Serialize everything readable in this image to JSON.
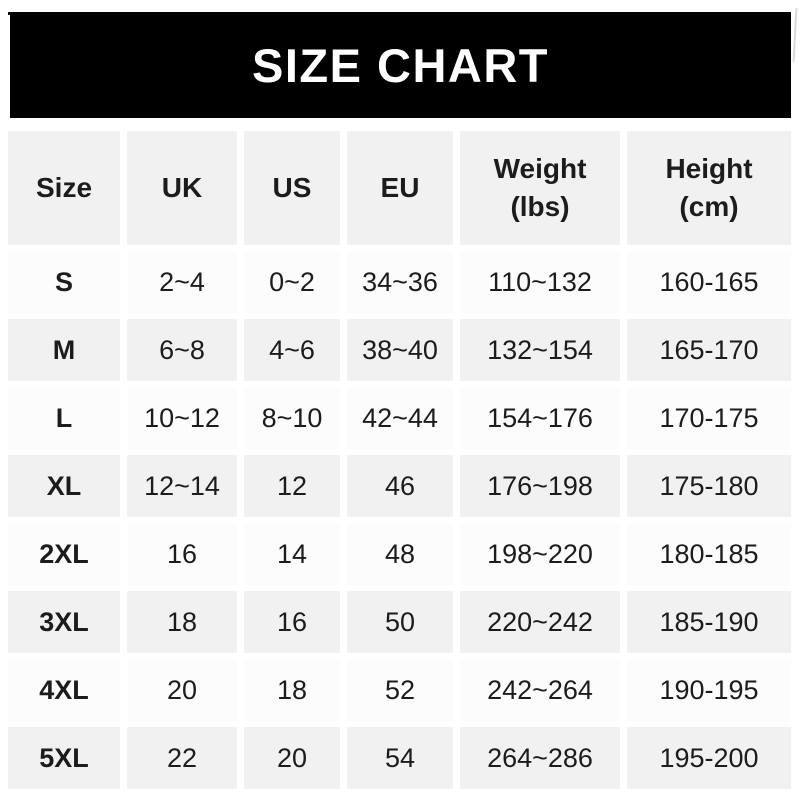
{
  "banner": {
    "title": "SIZE CHART"
  },
  "colors": {
    "banner_bg": "#000000",
    "banner_text": "#ffffff",
    "row_gray_bg": "#f1f1f2",
    "row_white_bg": "#fcfcfc",
    "text": "#1c1c1e"
  },
  "chart_data": {
    "type": "table",
    "title": "SIZE CHART",
    "columns": [
      {
        "label": "Size",
        "sub": ""
      },
      {
        "label": "UK",
        "sub": ""
      },
      {
        "label": "US",
        "sub": ""
      },
      {
        "label": "EU",
        "sub": ""
      },
      {
        "label": "Weight",
        "sub": "(lbs)"
      },
      {
        "label": "Height",
        "sub": "(cm)"
      }
    ],
    "rows": [
      {
        "cells": [
          "S",
          "2~4",
          "0~2",
          "34~36",
          "110~132",
          "160-165"
        ]
      },
      {
        "cells": [
          "M",
          "6~8",
          "4~6",
          "38~40",
          "132~154",
          "165-170"
        ]
      },
      {
        "cells": [
          "L",
          "10~12",
          "8~10",
          "42~44",
          "154~176",
          "170-175"
        ]
      },
      {
        "cells": [
          "XL",
          "12~14",
          "12",
          "46",
          "176~198",
          "175-180"
        ]
      },
      {
        "cells": [
          "2XL",
          "16",
          "14",
          "48",
          "198~220",
          "180-185"
        ]
      },
      {
        "cells": [
          "3XL",
          "18",
          "16",
          "50",
          "220~242",
          "185-190"
        ]
      },
      {
        "cells": [
          "4XL",
          "20",
          "18",
          "52",
          "242~264",
          "190-195"
        ]
      },
      {
        "cells": [
          "5XL",
          "22",
          "20",
          "54",
          "264~286",
          "195-200"
        ]
      }
    ],
    "layout": {
      "row_striping": "header gray, then alternating white/gray starting with white",
      "grid": "cells separated by thin white gaps"
    }
  }
}
